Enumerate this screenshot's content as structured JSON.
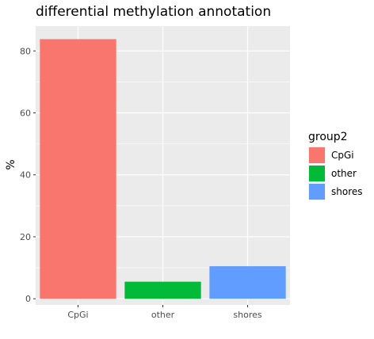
{
  "chart_data": {
    "type": "bar",
    "title": "differential methylation annotation",
    "xlabel": "",
    "ylabel": "%",
    "categories": [
      "CpGi",
      "other",
      "shores"
    ],
    "values": [
      83.8,
      5.5,
      10.5
    ],
    "colors": [
      "#F8766D",
      "#00BA38",
      "#619CFF"
    ],
    "ylim": [
      -2,
      88
    ],
    "yticks": [
      0,
      20,
      40,
      60,
      80
    ],
    "grid": true,
    "panel_background": "#EBEBEB",
    "legend": {
      "title": "group2",
      "position": "right",
      "entries": [
        "CpGi",
        "other",
        "shores"
      ]
    }
  }
}
